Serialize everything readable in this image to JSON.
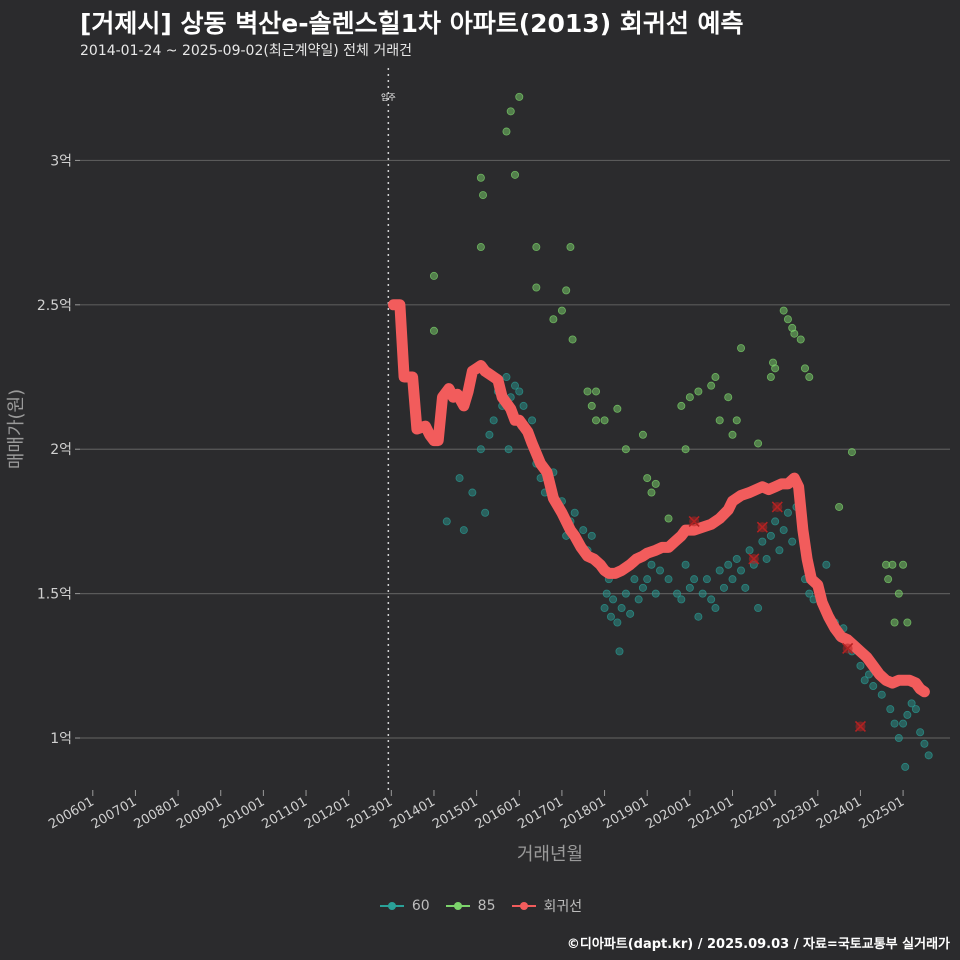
{
  "title": "[거제시] 상동 벽산e-솔렌스힐1차 아파트(2013) 회귀선 예측",
  "subtitle": "2014-01-24 ~ 2025-09-02(최근계약일) 전체 거래건",
  "caption": "©디아파트(dapt.kr) / 2025.09.03 / 자료=국토교통부 실거래가",
  "colors": {
    "background": "#2b2b2d",
    "grid": "#5a5a5a",
    "s60": "#2aa198",
    "s85": "#7cd36b",
    "regression": "#f25c5c",
    "marker": "#b22222"
  },
  "chart_data": {
    "type": "scatter",
    "title": "[거제시] 상동 벽산e-솔렌스힐1차 아파트(2013) 회귀선 예측",
    "xlabel": "거래년월",
    "ylabel": "매매가(원)",
    "xlim": [
      2005.7,
      2026.1
    ],
    "ylim": [
      0.82,
      3.32
    ],
    "y_unit": "억",
    "x_ticks": [
      {
        "label": "200601",
        "value": 2006.0
      },
      {
        "label": "200701",
        "value": 2007.0
      },
      {
        "label": "200801",
        "value": 2008.0
      },
      {
        "label": "200901",
        "value": 2009.0
      },
      {
        "label": "201001",
        "value": 2010.0
      },
      {
        "label": "201101",
        "value": 2011.0
      },
      {
        "label": "201201",
        "value": 2012.0
      },
      {
        "label": "201301",
        "value": 2013.0
      },
      {
        "label": "201401",
        "value": 2014.0
      },
      {
        "label": "201501",
        "value": 2015.0
      },
      {
        "label": "201601",
        "value": 2016.0
      },
      {
        "label": "201701",
        "value": 2017.0
      },
      {
        "label": "201801",
        "value": 2018.0
      },
      {
        "label": "201901",
        "value": 2019.0
      },
      {
        "label": "202001",
        "value": 2020.0
      },
      {
        "label": "202101",
        "value": 2021.0
      },
      {
        "label": "202201",
        "value": 2022.0
      },
      {
        "label": "202301",
        "value": 2023.0
      },
      {
        "label": "202401",
        "value": 2024.0
      },
      {
        "label": "202501",
        "value": 2025.0
      }
    ],
    "y_ticks": [
      {
        "label": "1억",
        "value": 1.0
      },
      {
        "label": "1.5억",
        "value": 1.5
      },
      {
        "label": "2억",
        "value": 2.0
      },
      {
        "label": "2.5억",
        "value": 2.5
      },
      {
        "label": "3억",
        "value": 3.0
      }
    ],
    "annotation": {
      "label": "입주",
      "x": 2012.93
    },
    "series": [
      {
        "name": "60",
        "points": [
          [
            2014.3,
            1.75
          ],
          [
            2014.6,
            1.9
          ],
          [
            2014.7,
            1.72
          ],
          [
            2014.9,
            1.85
          ],
          [
            2015.1,
            2.0
          ],
          [
            2015.2,
            1.78
          ],
          [
            2015.3,
            2.05
          ],
          [
            2015.4,
            2.1
          ],
          [
            2015.5,
            2.2
          ],
          [
            2015.6,
            2.15
          ],
          [
            2015.7,
            2.25
          ],
          [
            2015.75,
            2.0
          ],
          [
            2015.8,
            2.18
          ],
          [
            2015.85,
            2.12
          ],
          [
            2015.9,
            2.22
          ],
          [
            2016.0,
            2.2
          ],
          [
            2016.05,
            2.08
          ],
          [
            2016.1,
            2.15
          ],
          [
            2016.2,
            2.05
          ],
          [
            2016.3,
            2.1
          ],
          [
            2016.4,
            1.95
          ],
          [
            2016.5,
            1.9
          ],
          [
            2016.6,
            1.85
          ],
          [
            2016.7,
            1.88
          ],
          [
            2016.8,
            1.92
          ],
          [
            2016.9,
            1.8
          ],
          [
            2017.0,
            1.82
          ],
          [
            2017.1,
            1.7
          ],
          [
            2017.2,
            1.75
          ],
          [
            2017.3,
            1.78
          ],
          [
            2017.4,
            1.68
          ],
          [
            2017.5,
            1.72
          ],
          [
            2017.6,
            1.65
          ],
          [
            2017.7,
            1.7
          ],
          [
            2017.8,
            1.62
          ],
          [
            2017.9,
            1.6
          ],
          [
            2018.0,
            1.45
          ],
          [
            2018.05,
            1.5
          ],
          [
            2018.1,
            1.55
          ],
          [
            2018.15,
            1.42
          ],
          [
            2018.2,
            1.48
          ],
          [
            2018.3,
            1.4
          ],
          [
            2018.35,
            1.3
          ],
          [
            2018.4,
            1.45
          ],
          [
            2018.5,
            1.5
          ],
          [
            2018.6,
            1.43
          ],
          [
            2018.7,
            1.55
          ],
          [
            2018.8,
            1.48
          ],
          [
            2018.9,
            1.52
          ],
          [
            2019.0,
            1.55
          ],
          [
            2019.1,
            1.6
          ],
          [
            2019.2,
            1.5
          ],
          [
            2019.3,
            1.58
          ],
          [
            2019.5,
            1.55
          ],
          [
            2019.7,
            1.5
          ],
          [
            2019.8,
            1.48
          ],
          [
            2019.9,
            1.6
          ],
          [
            2020.0,
            1.52
          ],
          [
            2020.1,
            1.55
          ],
          [
            2020.2,
            1.42
          ],
          [
            2020.3,
            1.5
          ],
          [
            2020.4,
            1.55
          ],
          [
            2020.5,
            1.48
          ],
          [
            2020.6,
            1.45
          ],
          [
            2020.7,
            1.58
          ],
          [
            2020.8,
            1.52
          ],
          [
            2020.9,
            1.6
          ],
          [
            2021.0,
            1.55
          ],
          [
            2021.1,
            1.62
          ],
          [
            2021.2,
            1.58
          ],
          [
            2021.3,
            1.52
          ],
          [
            2021.4,
            1.65
          ],
          [
            2021.5,
            1.6
          ],
          [
            2021.6,
            1.45
          ],
          [
            2021.7,
            1.68
          ],
          [
            2021.8,
            1.62
          ],
          [
            2021.9,
            1.7
          ],
          [
            2022.0,
            1.75
          ],
          [
            2022.1,
            1.65
          ],
          [
            2022.2,
            1.72
          ],
          [
            2022.3,
            1.78
          ],
          [
            2022.4,
            1.68
          ],
          [
            2022.5,
            1.8
          ],
          [
            2022.6,
            1.75
          ],
          [
            2022.7,
            1.55
          ],
          [
            2022.8,
            1.5
          ],
          [
            2022.9,
            1.48
          ],
          [
            2023.0,
            1.52
          ],
          [
            2023.2,
            1.6
          ],
          [
            2023.4,
            1.4
          ],
          [
            2023.5,
            1.35
          ],
          [
            2023.6,
            1.38
          ],
          [
            2023.8,
            1.3
          ],
          [
            2024.0,
            1.25
          ],
          [
            2024.1,
            1.2
          ],
          [
            2024.2,
            1.22
          ],
          [
            2024.3,
            1.18
          ],
          [
            2024.5,
            1.15
          ],
          [
            2024.7,
            1.1
          ],
          [
            2024.8,
            1.05
          ],
          [
            2024.9,
            1.0
          ],
          [
            2025.0,
            1.05
          ],
          [
            2025.1,
            1.08
          ],
          [
            2025.2,
            1.12
          ],
          [
            2025.3,
            1.1
          ],
          [
            2025.4,
            1.02
          ],
          [
            2025.5,
            0.98
          ],
          [
            2025.6,
            0.94
          ],
          [
            2025.05,
            0.9
          ]
        ]
      },
      {
        "name": "85",
        "points": [
          [
            2014.0,
            2.6
          ],
          [
            2014.0,
            2.41
          ],
          [
            2015.1,
            2.94
          ],
          [
            2015.15,
            2.88
          ],
          [
            2015.1,
            2.7
          ],
          [
            2015.7,
            3.1
          ],
          [
            2015.8,
            3.17
          ],
          [
            2015.9,
            2.95
          ],
          [
            2016.0,
            3.22
          ],
          [
            2016.4,
            2.7
          ],
          [
            2016.4,
            2.56
          ],
          [
            2016.8,
            2.45
          ],
          [
            2017.0,
            2.48
          ],
          [
            2017.1,
            2.55
          ],
          [
            2017.2,
            2.7
          ],
          [
            2017.25,
            2.38
          ],
          [
            2017.6,
            2.2
          ],
          [
            2017.7,
            2.15
          ],
          [
            2017.8,
            2.2
          ],
          [
            2017.8,
            2.1
          ],
          [
            2018.0,
            2.1
          ],
          [
            2018.3,
            2.14
          ],
          [
            2018.5,
            2.0
          ],
          [
            2018.9,
            2.05
          ],
          [
            2019.0,
            1.9
          ],
          [
            2019.1,
            1.85
          ],
          [
            2019.2,
            1.88
          ],
          [
            2019.5,
            1.76
          ],
          [
            2019.8,
            2.15
          ],
          [
            2019.9,
            2.0
          ],
          [
            2020.0,
            2.18
          ],
          [
            2020.2,
            2.2
          ],
          [
            2020.5,
            2.22
          ],
          [
            2020.6,
            2.25
          ],
          [
            2020.7,
            2.1
          ],
          [
            2020.9,
            2.18
          ],
          [
            2021.0,
            2.05
          ],
          [
            2021.1,
            2.1
          ],
          [
            2021.2,
            2.35
          ],
          [
            2021.6,
            2.02
          ],
          [
            2021.9,
            2.25
          ],
          [
            2021.95,
            2.3
          ],
          [
            2022.0,
            2.28
          ],
          [
            2022.2,
            2.48
          ],
          [
            2022.3,
            2.45
          ],
          [
            2022.4,
            2.42
          ],
          [
            2022.45,
            2.4
          ],
          [
            2022.6,
            2.38
          ],
          [
            2022.7,
            2.28
          ],
          [
            2022.8,
            2.25
          ],
          [
            2023.5,
            1.8
          ],
          [
            2023.8,
            1.99
          ],
          [
            2024.6,
            1.6
          ],
          [
            2024.65,
            1.55
          ],
          [
            2024.75,
            1.6
          ],
          [
            2024.8,
            1.4
          ],
          [
            2024.9,
            1.5
          ],
          [
            2025.0,
            1.6
          ],
          [
            2025.1,
            1.4
          ]
        ]
      },
      {
        "name": "회귀선",
        "points": [
          [
            2013.05,
            2.5
          ],
          [
            2013.2,
            2.5
          ],
          [
            2013.3,
            2.25
          ],
          [
            2013.5,
            2.25
          ],
          [
            2013.6,
            2.07
          ],
          [
            2013.8,
            2.08
          ],
          [
            2013.9,
            2.05
          ],
          [
            2014.0,
            2.03
          ],
          [
            2014.1,
            2.03
          ],
          [
            2014.2,
            2.18
          ],
          [
            2014.35,
            2.21
          ],
          [
            2014.45,
            2.18
          ],
          [
            2014.55,
            2.19
          ],
          [
            2014.7,
            2.15
          ],
          [
            2014.8,
            2.2
          ],
          [
            2014.9,
            2.27
          ],
          [
            2015.0,
            2.28
          ],
          [
            2015.1,
            2.29
          ],
          [
            2015.2,
            2.27
          ],
          [
            2015.3,
            2.26
          ],
          [
            2015.4,
            2.25
          ],
          [
            2015.5,
            2.24
          ],
          [
            2015.6,
            2.18
          ],
          [
            2015.7,
            2.16
          ],
          [
            2015.8,
            2.14
          ],
          [
            2015.9,
            2.1
          ],
          [
            2016.0,
            2.1
          ],
          [
            2016.2,
            2.06
          ],
          [
            2016.3,
            2.02
          ],
          [
            2016.5,
            1.95
          ],
          [
            2016.65,
            1.92
          ],
          [
            2016.8,
            1.83
          ],
          [
            2017.0,
            1.78
          ],
          [
            2017.2,
            1.72
          ],
          [
            2017.3,
            1.7
          ],
          [
            2017.45,
            1.66
          ],
          [
            2017.6,
            1.63
          ],
          [
            2017.75,
            1.62
          ],
          [
            2017.9,
            1.6
          ],
          [
            2018.0,
            1.58
          ],
          [
            2018.1,
            1.57
          ],
          [
            2018.25,
            1.57
          ],
          [
            2018.4,
            1.58
          ],
          [
            2018.6,
            1.6
          ],
          [
            2018.75,
            1.62
          ],
          [
            2018.9,
            1.63
          ],
          [
            2019.0,
            1.64
          ],
          [
            2019.2,
            1.65
          ],
          [
            2019.35,
            1.66
          ],
          [
            2019.5,
            1.66
          ],
          [
            2019.65,
            1.68
          ],
          [
            2019.8,
            1.7
          ],
          [
            2019.9,
            1.72
          ],
          [
            2020.1,
            1.72
          ],
          [
            2020.3,
            1.73
          ],
          [
            2020.5,
            1.74
          ],
          [
            2020.7,
            1.76
          ],
          [
            2020.9,
            1.79
          ],
          [
            2021.0,
            1.82
          ],
          [
            2021.2,
            1.84
          ],
          [
            2021.4,
            1.85
          ],
          [
            2021.55,
            1.86
          ],
          [
            2021.7,
            1.87
          ],
          [
            2021.85,
            1.86
          ],
          [
            2022.0,
            1.87
          ],
          [
            2022.15,
            1.88
          ],
          [
            2022.3,
            1.88
          ],
          [
            2022.45,
            1.9
          ],
          [
            2022.55,
            1.87
          ],
          [
            2022.65,
            1.72
          ],
          [
            2022.75,
            1.62
          ],
          [
            2022.85,
            1.55
          ],
          [
            2023.0,
            1.53
          ],
          [
            2023.1,
            1.47
          ],
          [
            2023.25,
            1.42
          ],
          [
            2023.4,
            1.38
          ],
          [
            2023.55,
            1.35
          ],
          [
            2023.7,
            1.34
          ],
          [
            2023.85,
            1.32
          ],
          [
            2024.0,
            1.3
          ],
          [
            2024.15,
            1.28
          ],
          [
            2024.3,
            1.25
          ],
          [
            2024.45,
            1.22
          ],
          [
            2024.6,
            1.2
          ],
          [
            2024.75,
            1.19
          ],
          [
            2024.9,
            1.2
          ],
          [
            2025.0,
            1.2
          ],
          [
            2025.15,
            1.2
          ],
          [
            2025.3,
            1.19
          ],
          [
            2025.4,
            1.17
          ],
          [
            2025.5,
            1.16
          ]
        ]
      }
    ],
    "highlighted": [
      [
        2020.1,
        1.75
      ],
      [
        2021.5,
        1.62
      ],
      [
        2021.7,
        1.73
      ],
      [
        2022.05,
        1.8
      ],
      [
        2023.7,
        1.31
      ],
      [
        2024.0,
        1.04
      ]
    ]
  }
}
